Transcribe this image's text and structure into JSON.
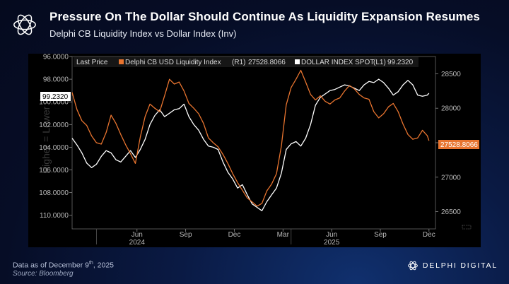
{
  "header": {
    "title": "Pressure On The Dollar Should Continue As Liquidity Expansion Resumes",
    "subtitle": "Delphi CB Liquidity Index vs Dollar Index (Inv)"
  },
  "footer": {
    "date_prefix": "Data as of December 9",
    "date_sup": "th",
    "date_suffix": ", 2025",
    "source": "Source: Bloomberg",
    "brand": "DELPHI DIGITAL"
  },
  "chart_data": {
    "type": "line",
    "legend": {
      "prefix": "Last Price",
      "entries": [
        {
          "label": "Delphi CB USD Liquidity Index",
          "axis": "(R1)",
          "last": "27528.8066",
          "color": "#e8742f"
        },
        {
          "label": "DOLLAR INDEX SPOT",
          "axis": "(L1)",
          "last": "99.2320",
          "color": "#ffffff"
        }
      ]
    },
    "watermark": "Higher = Lower",
    "left_axis": {
      "ticks": [
        "96.0000",
        "98.0000",
        "100.0000",
        "102.0000",
        "104.0000",
        "106.0000",
        "108.0000",
        "110.0000"
      ],
      "range": [
        96.0,
        111.2
      ],
      "inverted": true,
      "last_value_label": "99.2320"
    },
    "right_axis": {
      "ticks": [
        "28500",
        "28000",
        "27500",
        "27000",
        "26500"
      ],
      "range": [
        26250,
        28750
      ],
      "last_value_label": "27528.8066"
    },
    "x_axis": {
      "months": [
        "Jun",
        "Sep",
        "Dec",
        "Mar",
        "Jun",
        "Sep",
        "Dec"
      ],
      "month_positions": [
        6,
        9,
        12,
        15,
        18,
        21,
        24
      ],
      "years": [
        "2024",
        "2025"
      ],
      "year_positions": [
        6,
        18
      ],
      "range": [
        2,
        24.4
      ]
    },
    "series": [
      {
        "name": "DOLLAR INDEX SPOT (inverted, L1)",
        "x": [
          2.0,
          2.3,
          2.6,
          2.9,
          3.2,
          3.5,
          3.8,
          4.1,
          4.4,
          4.7,
          5.0,
          5.3,
          5.6,
          5.9,
          6.2,
          6.5,
          6.8,
          7.1,
          7.4,
          7.7,
          8.0,
          8.3,
          8.6,
          8.9,
          9.2,
          9.5,
          9.8,
          10.1,
          10.4,
          10.7,
          11.0,
          11.3,
          11.6,
          11.9,
          12.2,
          12.5,
          12.8,
          13.1,
          13.4,
          13.7,
          14.0,
          14.3,
          14.6,
          14.9,
          15.2,
          15.5,
          15.8,
          16.1,
          16.4,
          16.7,
          17.0,
          17.3,
          17.6,
          17.9,
          18.2,
          18.5,
          18.8,
          19.1,
          19.4,
          19.7,
          20.0,
          20.3,
          20.6,
          20.9,
          21.2,
          21.5,
          21.8,
          22.1,
          22.4,
          22.7,
          23.0,
          23.3,
          23.6,
          23.9,
          24.0
        ],
        "values": [
          103.2,
          103.8,
          104.5,
          105.4,
          105.8,
          105.5,
          104.8,
          104.3,
          104.5,
          105.1,
          105.3,
          104.8,
          104.3,
          104.9,
          104.2,
          103.3,
          102.0,
          101.2,
          100.7,
          101.3,
          101.0,
          100.7,
          100.6,
          100.2,
          101.3,
          102.0,
          102.5,
          103.3,
          103.9,
          104.0,
          104.2,
          105.3,
          106.2,
          106.8,
          107.6,
          107.3,
          108.2,
          109.0,
          109.3,
          109.6,
          108.8,
          108.2,
          107.6,
          106.3,
          104.2,
          103.7,
          103.5,
          103.9,
          103.2,
          102.0,
          100.3,
          99.6,
          99.3,
          99.0,
          98.9,
          98.7,
          98.5,
          98.6,
          98.8,
          99.0,
          98.5,
          98.2,
          98.3,
          98.0,
          98.3,
          98.8,
          99.4,
          99.1,
          98.5,
          98.1,
          98.5,
          99.4,
          99.5,
          99.4,
          99.232
        ]
      },
      {
        "name": "Delphi CB USD Liquidity Index (R1)",
        "x": [
          2.0,
          2.3,
          2.6,
          2.9,
          3.2,
          3.5,
          3.8,
          4.1,
          4.4,
          4.7,
          5.0,
          5.3,
          5.6,
          5.9,
          6.2,
          6.5,
          6.8,
          7.1,
          7.4,
          7.7,
          8.0,
          8.3,
          8.6,
          8.9,
          9.2,
          9.5,
          9.8,
          10.1,
          10.4,
          10.7,
          11.0,
          11.3,
          11.6,
          11.9,
          12.2,
          12.5,
          12.8,
          13.1,
          13.4,
          13.7,
          14.0,
          14.3,
          14.6,
          14.9,
          15.2,
          15.5,
          15.8,
          16.1,
          16.4,
          16.7,
          17.0,
          17.3,
          17.6,
          17.9,
          18.2,
          18.5,
          18.8,
          19.1,
          19.4,
          19.7,
          20.0,
          20.3,
          20.6,
          20.9,
          21.2,
          21.5,
          21.8,
          22.1,
          22.4,
          22.7,
          23.0,
          23.3,
          23.6,
          23.9,
          24.0
        ],
        "values": [
          28230,
          27980,
          27820,
          27750,
          27600,
          27500,
          27480,
          27650,
          27900,
          27780,
          27620,
          27470,
          27340,
          27200,
          27580,
          27880,
          28060,
          28000,
          27950,
          28180,
          28420,
          28350,
          28380,
          28250,
          28070,
          28000,
          27920,
          27780,
          27570,
          27500,
          27440,
          27330,
          27200,
          27050,
          26920,
          26810,
          26700,
          26640,
          26580,
          26620,
          26800,
          26900,
          27050,
          27450,
          28050,
          28300,
          28420,
          28550,
          28380,
          28200,
          28120,
          28180,
          28100,
          28060,
          28120,
          28150,
          28250,
          28330,
          28280,
          28200,
          28150,
          28130,
          27950,
          27860,
          27920,
          28020,
          28070,
          27950,
          27770,
          27620,
          27550,
          27570,
          27680,
          27600,
          27528.8
        ]
      }
    ]
  }
}
